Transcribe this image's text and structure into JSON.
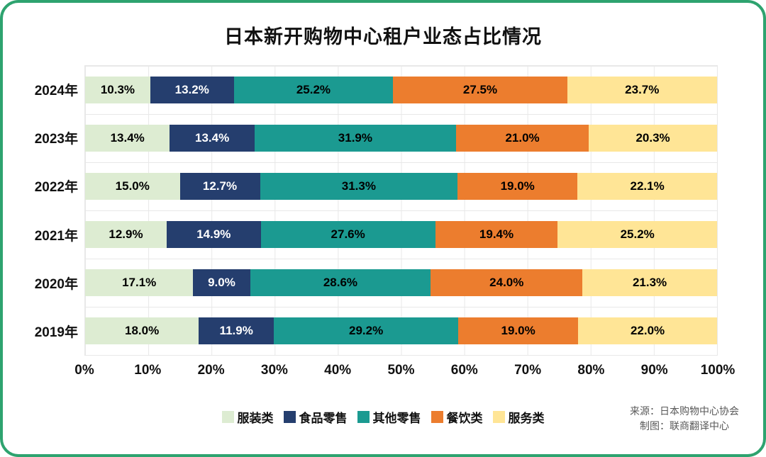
{
  "chart_data": {
    "type": "bar",
    "stacked": true,
    "orientation": "horizontal",
    "title": "日本新开购物中心租户业态占比情况",
    "categories": [
      "2024年",
      "2023年",
      "2022年",
      "2021年",
      "2020年",
      "2019年"
    ],
    "series": [
      {
        "name": "服装类",
        "color": "#ddecd2",
        "label_color": "#000000",
        "values": [
          10.3,
          13.4,
          15.0,
          12.9,
          17.1,
          18.0
        ]
      },
      {
        "name": "食品零售",
        "color": "#253e6e",
        "label_color": "#ffffff",
        "values": [
          13.2,
          13.4,
          12.7,
          14.9,
          9.0,
          11.9
        ]
      },
      {
        "name": "其他零售",
        "color": "#1b9a91",
        "label_color": "#000000",
        "values": [
          25.2,
          31.9,
          31.3,
          27.6,
          28.6,
          29.2
        ]
      },
      {
        "name": "餐饮类",
        "color": "#ec7d2e",
        "label_color": "#000000",
        "values": [
          27.5,
          21.0,
          19.0,
          19.4,
          24.0,
          19.0
        ]
      },
      {
        "name": "服务类",
        "color": "#ffe596",
        "label_color": "#000000",
        "values": [
          23.7,
          20.3,
          22.1,
          25.2,
          21.3,
          22.0
        ]
      }
    ],
    "x_ticks": [
      "0%",
      "10%",
      "20%",
      "30%",
      "40%",
      "50%",
      "60%",
      "70%",
      "80%",
      "90%",
      "100%"
    ],
    "xlim": [
      0,
      100
    ],
    "grid": true,
    "legend_position": "bottom"
  },
  "source": {
    "line1": "来源：日本购物中心协会",
    "line2": "制图：联商翻译中心"
  },
  "style": {
    "border_color": "#2ea36f",
    "grid_color": "#e8e8e8"
  }
}
